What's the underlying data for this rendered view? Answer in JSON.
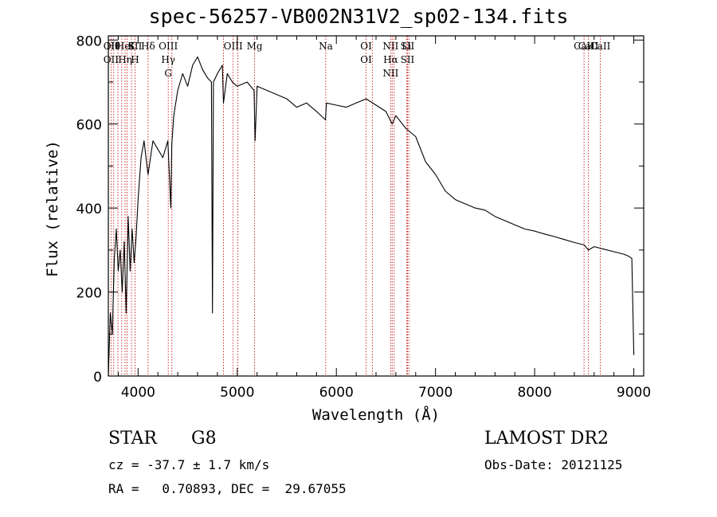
{
  "chart_data": {
    "type": "line",
    "title": "spec-56257-VB002N31V2_sp02-134.fits",
    "xlabel": "Wavelength (Å)",
    "ylabel": "Flux (relative)",
    "xlim": [
      3700,
      9100
    ],
    "ylim": [
      0,
      810
    ],
    "xticks": [
      4000,
      5000,
      6000,
      7000,
      8000,
      9000
    ],
    "yticks": [
      0,
      200,
      400,
      600,
      800
    ],
    "grid": false,
    "series": [
      {
        "x": [
          3700,
          3720,
          3740,
          3760,
          3780,
          3800,
          3820,
          3840,
          3860,
          3880,
          3900,
          3920,
          3940,
          3960,
          3980,
          4000,
          4030,
          4060,
          4100,
          4150,
          4200,
          4250,
          4300,
          4330,
          4340,
          4360,
          4400,
          4450,
          4500,
          4550,
          4600,
          4650,
          4700,
          4740,
          4750,
          4760,
          4800,
          4850,
          4861,
          4900,
          4950,
          5000,
          5100,
          5170,
          5180,
          5200,
          5300,
          5400,
          5500,
          5600,
          5700,
          5800,
          5890,
          5900,
          6000,
          6100,
          6200,
          6300,
          6400,
          6500,
          6563,
          6600,
          6700,
          6800,
          6900,
          7000,
          7100,
          7200,
          7300,
          7400,
          7500,
          7600,
          7700,
          7800,
          7900,
          8000,
          8100,
          8200,
          8300,
          8400,
          8500,
          8542,
          8600,
          8700,
          8800,
          8900,
          8950,
          8980,
          9000
        ],
        "values": [
          0,
          150,
          100,
          280,
          350,
          250,
          300,
          200,
          320,
          150,
          380,
          250,
          350,
          270,
          330,
          420,
          520,
          560,
          480,
          560,
          540,
          520,
          560,
          400,
          550,
          620,
          680,
          720,
          690,
          740,
          760,
          730,
          710,
          700,
          150,
          700,
          720,
          740,
          650,
          720,
          700,
          690,
          700,
          680,
          560,
          690,
          680,
          670,
          660,
          640,
          650,
          630,
          610,
          650,
          645,
          640,
          650,
          660,
          645,
          630,
          600,
          620,
          590,
          570,
          510,
          480,
          440,
          420,
          410,
          400,
          395,
          380,
          370,
          360,
          350,
          345,
          338,
          332,
          325,
          318,
          312,
          300,
          308,
          302,
          296,
          290,
          285,
          280,
          50
        ]
      }
    ],
    "lines": [
      {
        "wave": 3727,
        "labels": [
          "OII",
          "OII"
        ]
      },
      {
        "wave": 3750,
        "labels": [
          "Hθ"
        ]
      },
      {
        "wave": 3797,
        "labels": []
      },
      {
        "wave": 3835,
        "labels": []
      },
      {
        "wave": 3869,
        "labels": [
          "HeI",
          "Hη"
        ]
      },
      {
        "wave": 3889,
        "labels": []
      },
      {
        "wave": 3934,
        "labels": [
          "K"
        ]
      },
      {
        "wave": 3969,
        "labels": [
          "SII",
          "H"
        ]
      },
      {
        "wave": 4101,
        "labels": [
          "Hδ"
        ]
      },
      {
        "wave": 4304,
        "labels": [
          "OIII",
          "Hγ",
          "G"
        ]
      },
      {
        "wave": 4341,
        "labels": []
      },
      {
        "wave": 4861,
        "labels": []
      },
      {
        "wave": 4959,
        "labels": [
          "OIII"
        ]
      },
      {
        "wave": 5007,
        "labels": []
      },
      {
        "wave": 5175,
        "labels": [
          "Mg"
        ]
      },
      {
        "wave": 5893,
        "labels": [
          "Na"
        ]
      },
      {
        "wave": 6300,
        "labels": [
          "OI",
          "OI"
        ]
      },
      {
        "wave": 6363,
        "labels": []
      },
      {
        "wave": 6548,
        "labels": [
          "NII",
          "Hα",
          "NII"
        ]
      },
      {
        "wave": 6563,
        "labels": []
      },
      {
        "wave": 6583,
        "labels": []
      },
      {
        "wave": 6708,
        "labels": [
          "Li"
        ]
      },
      {
        "wave": 6717,
        "labels": [
          "SII",
          "SII"
        ]
      },
      {
        "wave": 6731,
        "labels": []
      },
      {
        "wave": 8498,
        "labels": [
          "CaII"
        ]
      },
      {
        "wave": 8542,
        "labels": [
          "CaII"
        ]
      },
      {
        "wave": 8662,
        "labels": [
          "CaII"
        ]
      }
    ]
  },
  "info": {
    "class": "STAR",
    "subclass": "G8",
    "survey": "LAMOST DR2",
    "cz": "cz = -37.7 ± 1.7 km/s",
    "obs_date": "Obs-Date: 20121125",
    "radec": "RA =   0.70893, DEC =  29.67055"
  }
}
